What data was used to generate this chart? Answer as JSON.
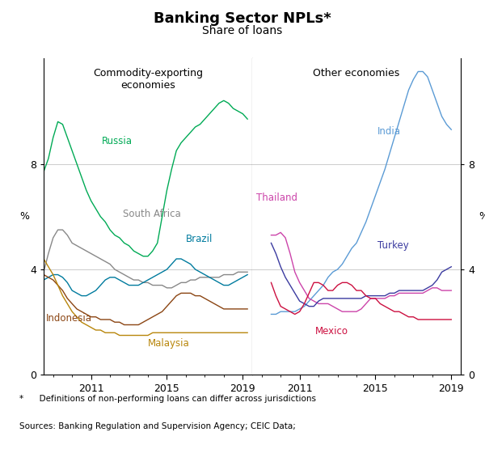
{
  "title": "Banking Sector NPLs*",
  "subtitle": "Share of loans",
  "footnote1": "*      Definitions of non-performing loans can differ across jurisdictions",
  "footnote2": "Sources: Banking Regulation and Supervision Agency; CEIC Data;",
  "left_panel_label": "Commodity-exporting\neconomies",
  "right_panel_label": "Other economies",
  "ylabel_left": "%",
  "ylabel_right": "%",
  "ylim": [
    0,
    12
  ],
  "yticks": [
    0,
    4,
    8
  ],
  "xlim": [
    2008.5,
    2019.5
  ],
  "russia": {
    "label": "Russia",
    "color": "#00AA55",
    "x": [
      2008.5,
      2008.75,
      2009.0,
      2009.25,
      2009.5,
      2009.75,
      2010.0,
      2010.25,
      2010.5,
      2010.75,
      2011.0,
      2011.25,
      2011.5,
      2011.75,
      2012.0,
      2012.25,
      2012.5,
      2012.75,
      2013.0,
      2013.25,
      2013.5,
      2013.75,
      2014.0,
      2014.25,
      2014.5,
      2014.75,
      2015.0,
      2015.25,
      2015.5,
      2015.75,
      2016.0,
      2016.25,
      2016.5,
      2016.75,
      2017.0,
      2017.25,
      2017.5,
      2017.75,
      2018.0,
      2018.25,
      2018.5,
      2018.75,
      2019.0,
      2019.25
    ],
    "y": [
      7.7,
      8.2,
      9.0,
      9.6,
      9.5,
      9.0,
      8.5,
      8.0,
      7.5,
      7.0,
      6.6,
      6.3,
      6.0,
      5.8,
      5.5,
      5.3,
      5.2,
      5.0,
      4.9,
      4.7,
      4.6,
      4.5,
      4.5,
      4.7,
      5.0,
      6.0,
      7.0,
      7.8,
      8.5,
      8.8,
      9.0,
      9.2,
      9.4,
      9.5,
      9.7,
      9.9,
      10.1,
      10.3,
      10.4,
      10.3,
      10.1,
      10.0,
      9.9,
      9.7
    ]
  },
  "south_africa": {
    "label": "South Africa",
    "color": "#888888",
    "x": [
      2008.5,
      2008.75,
      2009.0,
      2009.25,
      2009.5,
      2009.75,
      2010.0,
      2010.25,
      2010.5,
      2010.75,
      2011.0,
      2011.25,
      2011.5,
      2011.75,
      2012.0,
      2012.25,
      2012.5,
      2012.75,
      2013.0,
      2013.25,
      2013.5,
      2013.75,
      2014.0,
      2014.25,
      2014.5,
      2014.75,
      2015.0,
      2015.25,
      2015.5,
      2015.75,
      2016.0,
      2016.25,
      2016.5,
      2016.75,
      2017.0,
      2017.25,
      2017.5,
      2017.75,
      2018.0,
      2018.25,
      2018.5,
      2018.75,
      2019.0,
      2019.25
    ],
    "y": [
      3.9,
      4.6,
      5.2,
      5.5,
      5.5,
      5.3,
      5.0,
      4.9,
      4.8,
      4.7,
      4.6,
      4.5,
      4.4,
      4.3,
      4.2,
      4.0,
      3.9,
      3.8,
      3.7,
      3.6,
      3.6,
      3.5,
      3.5,
      3.4,
      3.4,
      3.4,
      3.3,
      3.3,
      3.4,
      3.5,
      3.5,
      3.6,
      3.6,
      3.7,
      3.7,
      3.7,
      3.7,
      3.7,
      3.8,
      3.8,
      3.8,
      3.9,
      3.9,
      3.9
    ]
  },
  "brazil": {
    "label": "Brazil",
    "color": "#007B9E",
    "x": [
      2008.5,
      2008.75,
      2009.0,
      2009.25,
      2009.5,
      2009.75,
      2010.0,
      2010.25,
      2010.5,
      2010.75,
      2011.0,
      2011.25,
      2011.5,
      2011.75,
      2012.0,
      2012.25,
      2012.5,
      2012.75,
      2013.0,
      2013.25,
      2013.5,
      2013.75,
      2014.0,
      2014.25,
      2014.5,
      2014.75,
      2015.0,
      2015.25,
      2015.5,
      2015.75,
      2016.0,
      2016.25,
      2016.5,
      2016.75,
      2017.0,
      2017.25,
      2017.5,
      2017.75,
      2018.0,
      2018.25,
      2018.5,
      2018.75,
      2019.0,
      2019.25
    ],
    "y": [
      3.6,
      3.7,
      3.8,
      3.8,
      3.7,
      3.5,
      3.2,
      3.1,
      3.0,
      3.0,
      3.1,
      3.2,
      3.4,
      3.6,
      3.7,
      3.7,
      3.6,
      3.5,
      3.4,
      3.4,
      3.4,
      3.5,
      3.6,
      3.7,
      3.8,
      3.9,
      4.0,
      4.2,
      4.4,
      4.4,
      4.3,
      4.2,
      4.0,
      3.9,
      3.8,
      3.7,
      3.6,
      3.5,
      3.4,
      3.4,
      3.5,
      3.6,
      3.7,
      3.8
    ]
  },
  "indonesia": {
    "label": "Indonesia",
    "color": "#8B4513",
    "x": [
      2008.5,
      2008.75,
      2009.0,
      2009.25,
      2009.5,
      2009.75,
      2010.0,
      2010.25,
      2010.5,
      2010.75,
      2011.0,
      2011.25,
      2011.5,
      2011.75,
      2012.0,
      2012.25,
      2012.5,
      2012.75,
      2013.0,
      2013.25,
      2013.5,
      2013.75,
      2014.0,
      2014.25,
      2014.5,
      2014.75,
      2015.0,
      2015.25,
      2015.5,
      2015.75,
      2016.0,
      2016.25,
      2016.5,
      2016.75,
      2017.0,
      2017.25,
      2017.5,
      2017.75,
      2018.0,
      2018.25,
      2018.5,
      2018.75,
      2019.0,
      2019.25
    ],
    "y": [
      3.8,
      3.7,
      3.6,
      3.4,
      3.2,
      2.9,
      2.7,
      2.5,
      2.4,
      2.3,
      2.2,
      2.2,
      2.1,
      2.1,
      2.1,
      2.0,
      2.0,
      1.9,
      1.9,
      1.9,
      1.9,
      2.0,
      2.1,
      2.2,
      2.3,
      2.4,
      2.6,
      2.8,
      3.0,
      3.1,
      3.1,
      3.1,
      3.0,
      3.0,
      2.9,
      2.8,
      2.7,
      2.6,
      2.5,
      2.5,
      2.5,
      2.5,
      2.5,
      2.5
    ]
  },
  "malaysia": {
    "label": "Malaysia",
    "color": "#B8860B",
    "x": [
      2008.5,
      2008.75,
      2009.0,
      2009.25,
      2009.5,
      2009.75,
      2010.0,
      2010.25,
      2010.5,
      2010.75,
      2011.0,
      2011.25,
      2011.5,
      2011.75,
      2012.0,
      2012.25,
      2012.5,
      2012.75,
      2013.0,
      2013.25,
      2013.5,
      2013.75,
      2014.0,
      2014.25,
      2014.5,
      2014.75,
      2015.0,
      2015.25,
      2015.5,
      2015.75,
      2016.0,
      2016.25,
      2016.5,
      2016.75,
      2017.0,
      2017.25,
      2017.5,
      2017.75,
      2018.0,
      2018.25,
      2018.5,
      2018.75,
      2019.0,
      2019.25
    ],
    "y": [
      4.4,
      4.1,
      3.8,
      3.4,
      3.0,
      2.7,
      2.4,
      2.2,
      2.0,
      1.9,
      1.8,
      1.7,
      1.7,
      1.6,
      1.6,
      1.6,
      1.5,
      1.5,
      1.5,
      1.5,
      1.5,
      1.5,
      1.5,
      1.6,
      1.6,
      1.6,
      1.6,
      1.6,
      1.6,
      1.6,
      1.6,
      1.6,
      1.6,
      1.6,
      1.6,
      1.6,
      1.6,
      1.6,
      1.6,
      1.6,
      1.6,
      1.6,
      1.6,
      1.6
    ]
  },
  "india": {
    "label": "India",
    "color": "#5B9BD5",
    "x": [
      2009.5,
      2009.75,
      2010.0,
      2010.25,
      2010.5,
      2010.75,
      2011.0,
      2011.25,
      2011.5,
      2011.75,
      2012.0,
      2012.25,
      2012.5,
      2012.75,
      2013.0,
      2013.25,
      2013.5,
      2013.75,
      2014.0,
      2014.25,
      2014.5,
      2014.75,
      2015.0,
      2015.25,
      2015.5,
      2015.75,
      2016.0,
      2016.25,
      2016.5,
      2016.75,
      2017.0,
      2017.25,
      2017.5,
      2017.75,
      2018.0,
      2018.25,
      2018.5,
      2018.75,
      2019.0
    ],
    "y": [
      2.3,
      2.3,
      2.4,
      2.4,
      2.4,
      2.4,
      2.5,
      2.6,
      2.8,
      3.0,
      3.2,
      3.4,
      3.7,
      3.9,
      4.0,
      4.2,
      4.5,
      4.8,
      5.0,
      5.4,
      5.8,
      6.3,
      6.8,
      7.3,
      7.8,
      8.4,
      9.0,
      9.6,
      10.2,
      10.8,
      11.2,
      11.5,
      11.5,
      11.3,
      10.8,
      10.3,
      9.8,
      9.5,
      9.3
    ]
  },
  "thailand": {
    "label": "Thailand",
    "color": "#CC44AA",
    "x": [
      2009.5,
      2009.75,
      2010.0,
      2010.25,
      2010.5,
      2010.75,
      2011.0,
      2011.25,
      2011.5,
      2011.75,
      2012.0,
      2012.25,
      2012.5,
      2012.75,
      2013.0,
      2013.25,
      2013.5,
      2013.75,
      2014.0,
      2014.25,
      2014.5,
      2014.75,
      2015.0,
      2015.25,
      2015.5,
      2015.75,
      2016.0,
      2016.25,
      2016.5,
      2016.75,
      2017.0,
      2017.25,
      2017.5,
      2017.75,
      2018.0,
      2018.25,
      2018.5,
      2018.75,
      2019.0
    ],
    "y": [
      5.3,
      5.3,
      5.4,
      5.2,
      4.6,
      3.9,
      3.5,
      3.2,
      2.9,
      2.8,
      2.7,
      2.7,
      2.7,
      2.6,
      2.5,
      2.4,
      2.4,
      2.4,
      2.4,
      2.5,
      2.7,
      2.9,
      2.9,
      2.9,
      2.9,
      3.0,
      3.0,
      3.1,
      3.1,
      3.1,
      3.1,
      3.1,
      3.1,
      3.2,
      3.3,
      3.3,
      3.2,
      3.2,
      3.2
    ]
  },
  "turkey": {
    "label": "Turkey",
    "color": "#3B3BA0",
    "x": [
      2009.5,
      2009.75,
      2010.0,
      2010.25,
      2010.5,
      2010.75,
      2011.0,
      2011.25,
      2011.5,
      2011.75,
      2012.0,
      2012.25,
      2012.5,
      2012.75,
      2013.0,
      2013.25,
      2013.5,
      2013.75,
      2014.0,
      2014.25,
      2014.5,
      2014.75,
      2015.0,
      2015.25,
      2015.5,
      2015.75,
      2016.0,
      2016.25,
      2016.5,
      2016.75,
      2017.0,
      2017.25,
      2017.5,
      2017.75,
      2018.0,
      2018.25,
      2018.5,
      2018.75,
      2019.0
    ],
    "y": [
      5.0,
      4.6,
      4.1,
      3.7,
      3.4,
      3.1,
      2.8,
      2.7,
      2.6,
      2.6,
      2.8,
      2.9,
      2.9,
      2.9,
      2.9,
      2.9,
      2.9,
      2.9,
      2.9,
      2.9,
      3.0,
      3.0,
      3.0,
      3.0,
      3.0,
      3.1,
      3.1,
      3.2,
      3.2,
      3.2,
      3.2,
      3.2,
      3.2,
      3.3,
      3.4,
      3.6,
      3.9,
      4.0,
      4.1
    ]
  },
  "mexico": {
    "label": "Mexico",
    "color": "#CC1040",
    "x": [
      2009.5,
      2009.75,
      2010.0,
      2010.25,
      2010.5,
      2010.75,
      2011.0,
      2011.25,
      2011.5,
      2011.75,
      2012.0,
      2012.25,
      2012.5,
      2012.75,
      2013.0,
      2013.25,
      2013.5,
      2013.75,
      2014.0,
      2014.25,
      2014.5,
      2014.75,
      2015.0,
      2015.25,
      2015.5,
      2015.75,
      2016.0,
      2016.25,
      2016.5,
      2016.75,
      2017.0,
      2017.25,
      2017.5,
      2017.75,
      2018.0,
      2018.25,
      2018.5,
      2018.75,
      2019.0
    ],
    "y": [
      3.5,
      3.0,
      2.6,
      2.5,
      2.4,
      2.3,
      2.4,
      2.7,
      3.1,
      3.5,
      3.5,
      3.4,
      3.2,
      3.2,
      3.4,
      3.5,
      3.5,
      3.4,
      3.2,
      3.2,
      3.0,
      2.9,
      2.9,
      2.7,
      2.6,
      2.5,
      2.4,
      2.4,
      2.3,
      2.2,
      2.2,
      2.1,
      2.1,
      2.1,
      2.1,
      2.1,
      2.1,
      2.1,
      2.1
    ]
  }
}
